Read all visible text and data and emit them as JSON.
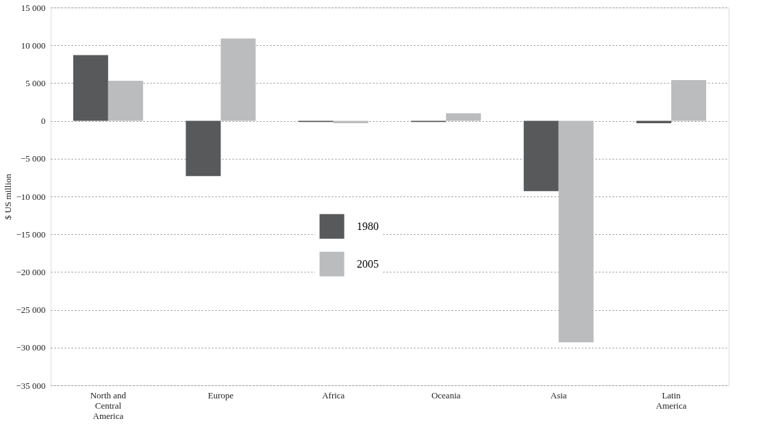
{
  "chart_data": {
    "type": "bar",
    "ylabel": "$ US million",
    "categories": [
      "North and Central America",
      "Europe",
      "Africa",
      "Oceania",
      "Asia",
      "Latin America"
    ],
    "series": [
      {
        "name": "1980",
        "color": "#58595b",
        "values": [
          8700,
          -7300,
          -150,
          -150,
          -9300,
          -300
        ]
      },
      {
        "name": "2005",
        "color": "#bbbcbe",
        "values": [
          5300,
          10900,
          -300,
          1000,
          -29300,
          5400
        ]
      }
    ],
    "ylim": [
      -35000,
      15000
    ],
    "yticks": [
      {
        "value": -35000,
        "label": "−35 000"
      },
      {
        "value": -30000,
        "label": "−30 000"
      },
      {
        "value": -25000,
        "label": "−25 000"
      },
      {
        "value": -20000,
        "label": "−20 000"
      },
      {
        "value": -15000,
        "label": "−15 000"
      },
      {
        "value": -10000,
        "label": "−10 000"
      },
      {
        "value": -5000,
        "label": "−5 000"
      },
      0,
      {
        "value": 5000,
        "label": "5 000"
      },
      {
        "value": 10000,
        "label": "10 000"
      },
      {
        "value": 15000,
        "label": "15 000"
      }
    ],
    "grid": "y",
    "legend": "center"
  }
}
